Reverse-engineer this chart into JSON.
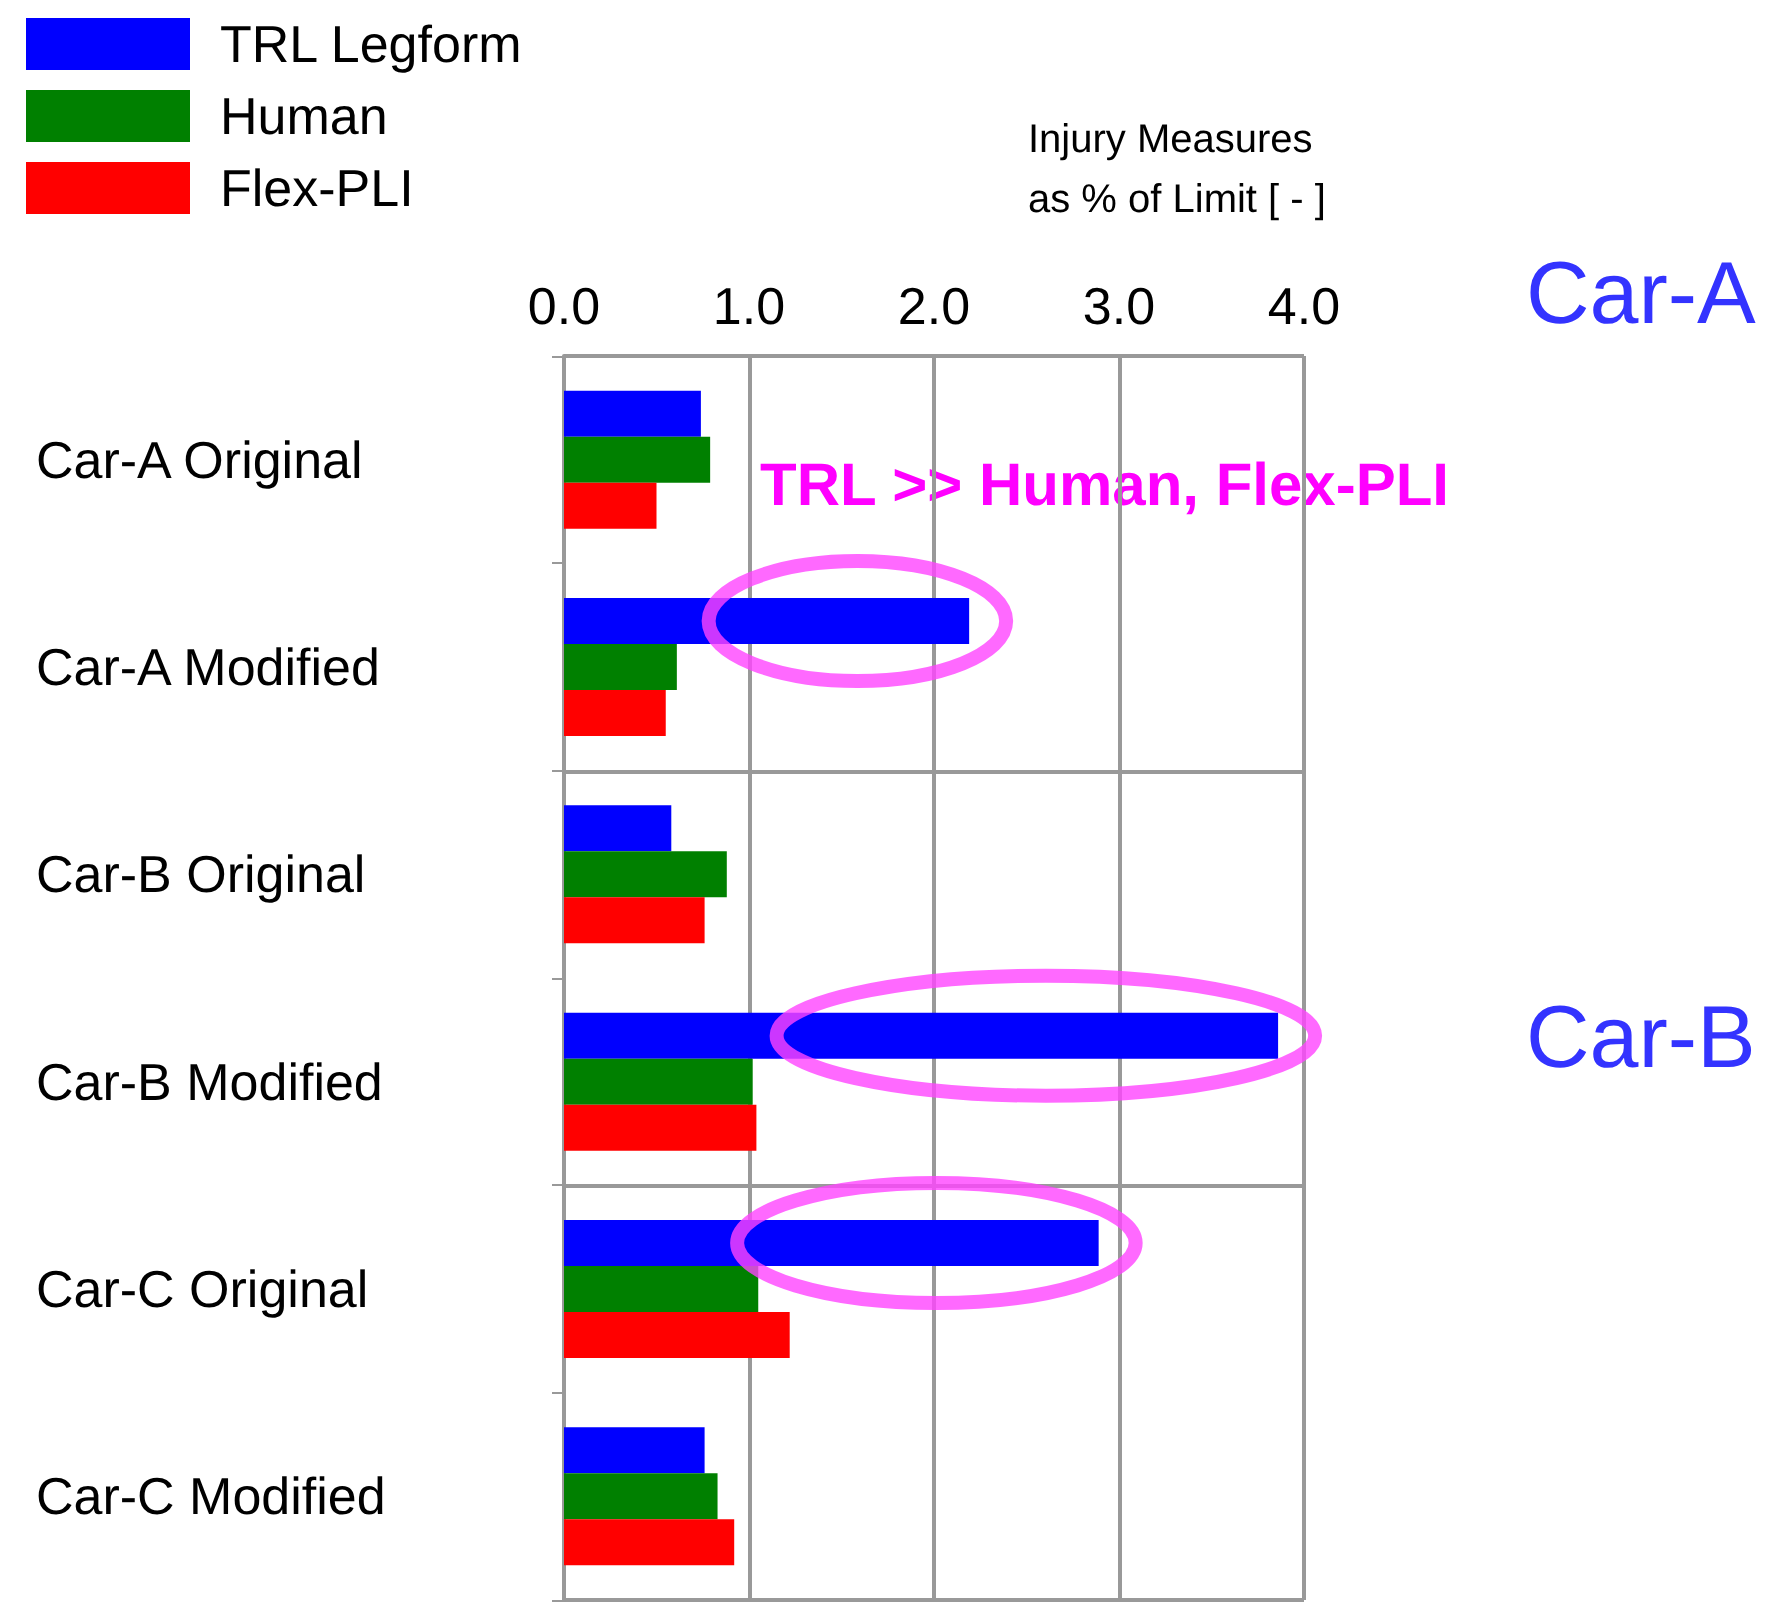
{
  "chart_data": {
    "type": "bar",
    "orientation": "horizontal",
    "xlabel": "Injury Measures\nas % of Limit [ - ]",
    "categories": [
      "Car-A Original",
      "Car-A Modified",
      "Car-B Original",
      "Car-B Modified",
      "Car-C Original",
      "Car-C Modified"
    ],
    "series": [
      {
        "name": "TRL Legform",
        "color": "#0000ff",
        "values": [
          0.74,
          2.19,
          0.58,
          3.86,
          2.89,
          0.76
        ]
      },
      {
        "name": "Human",
        "color": "#008000",
        "values": [
          0.79,
          0.61,
          0.88,
          1.02,
          1.05,
          0.83
        ]
      },
      {
        "name": "Flex-PLI",
        "color": "#ff0000",
        "values": [
          0.5,
          0.55,
          0.76,
          1.04,
          1.22,
          0.92
        ]
      }
    ],
    "xlim": [
      0,
      4
    ],
    "xticks": [
      {
        "value": 0,
        "label": "0.0"
      },
      {
        "value": 1,
        "label": "1.0"
      },
      {
        "value": 2,
        "label": "2.0"
      },
      {
        "value": 3,
        "label": "3.0"
      },
      {
        "value": 4,
        "label": "4.0"
      }
    ],
    "grid": "x",
    "legend": "top left",
    "annotations": [
      "TRL >> Human, Flex-PLI",
      "Car-A",
      "Car-B"
    ]
  }
}
